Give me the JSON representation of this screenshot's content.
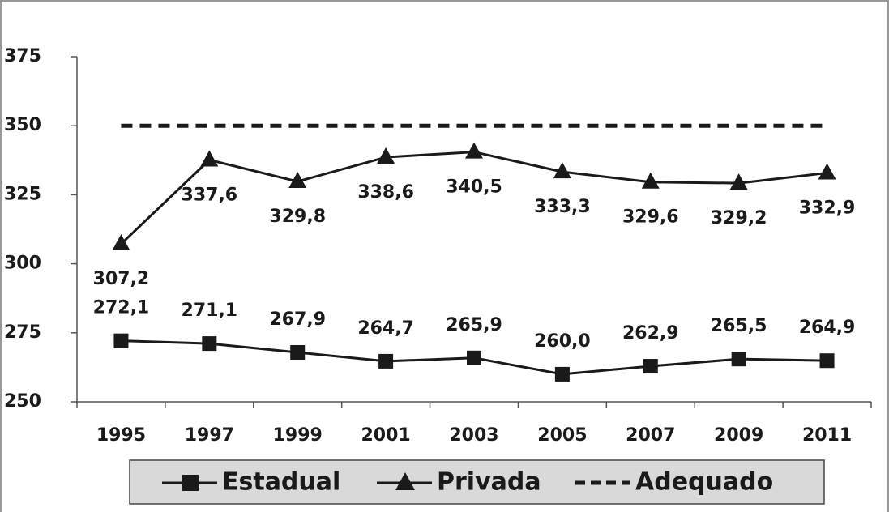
{
  "chart_data": {
    "type": "line",
    "categories": [
      "1995",
      "1997",
      "1999",
      "2001",
      "2003",
      "2005",
      "2007",
      "2009",
      "2011"
    ],
    "series": [
      {
        "name": "Estadual",
        "color": "#1a1a1a",
        "marker": "square",
        "line_style": "solid",
        "label_position": "above",
        "values": [
          272.1,
          271.1,
          267.9,
          264.7,
          265.9,
          260.0,
          262.9,
          265.5,
          264.9
        ],
        "value_labels": [
          "272,1",
          "271,1",
          "267,9",
          "264,7",
          "265,9",
          "260,0",
          "262,9",
          "265,5",
          "264,9"
        ]
      },
      {
        "name": "Privada",
        "color": "#1a1a1a",
        "marker": "triangle",
        "line_style": "solid",
        "label_position": "below",
        "values": [
          307.2,
          337.6,
          329.8,
          338.6,
          340.5,
          333.3,
          329.6,
          329.2,
          332.9
        ],
        "value_labels": [
          "307,2",
          "337,6",
          "329,8",
          "338,6",
          "340,5",
          "333,3",
          "329,6",
          "329,2",
          "332,9"
        ]
      },
      {
        "name": "Adequado",
        "color": "#1a1a1a",
        "marker": "none",
        "line_style": "dashed",
        "values": [
          350,
          350,
          350,
          350,
          350,
          350,
          350,
          350,
          350
        ]
      }
    ],
    "ylim": [
      250,
      375
    ],
    "yticks": [
      250,
      275,
      300,
      325,
      350,
      375
    ],
    "grid": false,
    "legend": "bottom"
  }
}
